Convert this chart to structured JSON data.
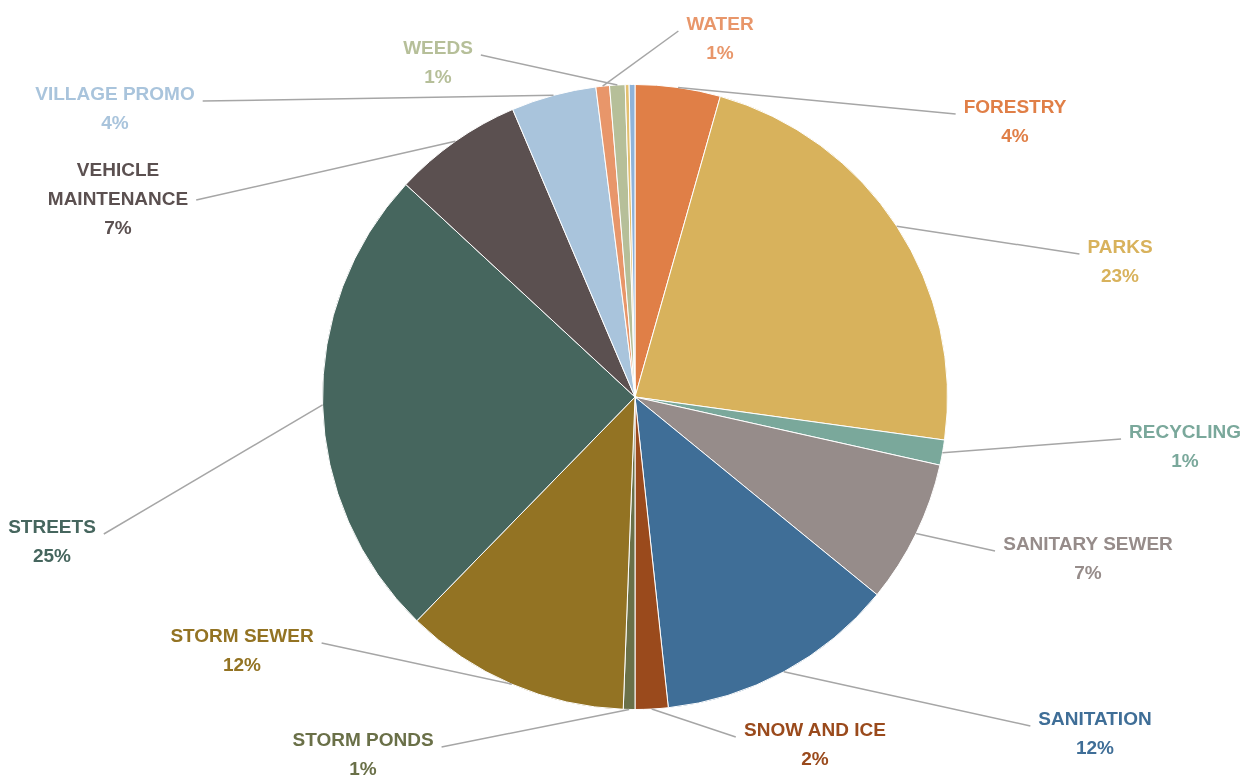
{
  "chart_data": {
    "type": "pie",
    "categories": [
      "FORESTRY",
      "PARKS",
      "RECYCLING",
      "SANITARY SEWER",
      "SANITATION",
      "SNOW AND ICE",
      "STORM PONDS",
      "STORM SEWER",
      "STREETS",
      "VEHICLE MAINTENANCE",
      "VILLAGE PROMO",
      "WATER",
      "WEEDS",
      null,
      null
    ],
    "values": [
      4.4,
      22.8,
      1.3,
      7.4,
      12.4,
      1.7,
      0.6,
      11.7,
      24.6,
      6.7,
      4.4,
      0.7,
      0.8,
      0.2,
      0.3
    ],
    "colors": [
      "#e07f47",
      "#d8b25c",
      "#7aa89b",
      "#968c8a",
      "#3f6e97",
      "#9a4a1c",
      "#6a7048",
      "#937323",
      "#46665e",
      "#5b5050",
      "#a9c4dc",
      "#e8966a",
      "#b6bf99",
      "#e3c070",
      "#8fb3d9"
    ],
    "value_labels": [
      "4%",
      "23%",
      "1%",
      "7%",
      "12%",
      "2%",
      "1%",
      "12%",
      "25%",
      "7%",
      "4%",
      "1%",
      "1%",
      null,
      null
    ],
    "legend": false
  }
}
